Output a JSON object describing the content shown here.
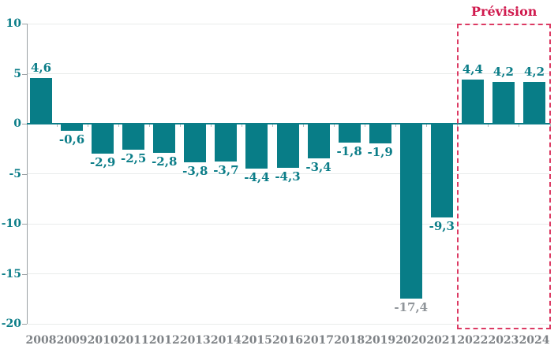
{
  "colors": {
    "bar": "#087d87",
    "value_label": "#0b7d88",
    "muted_value_label": "#90959a",
    "year_label": "#7e8286",
    "ytick_label": "#0b7d88",
    "axis_line": "#9aa0a3",
    "gridline": "#e9eceb",
    "zero_line": "#0b7d88",
    "tick_mark": "#b3b7b9",
    "forecast_border": "#dc3a63",
    "forecast_text": "#d01a4e",
    "background": "#ffffff"
  },
  "chart_data": {
    "type": "bar",
    "title": "",
    "xlabel": "",
    "ylabel": "",
    "categories": [
      "2008",
      "2009",
      "2010",
      "2011",
      "2012",
      "2013",
      "2014",
      "2015",
      "2016",
      "2017",
      "2018",
      "2019",
      "2020",
      "2021",
      "2022",
      "2023",
      "2024"
    ],
    "values": [
      4.6,
      -0.6,
      -2.9,
      -2.5,
      -2.8,
      -3.8,
      -3.7,
      -4.4,
      -4.3,
      -3.4,
      -1.8,
      -1.9,
      -17.4,
      -9.3,
      4.4,
      4.2,
      4.2
    ],
    "value_labels": [
      "4,6",
      "-0,6",
      "-2,9",
      "-2,5",
      "-2,8",
      "-3,8",
      "-3,7",
      "-4,4",
      "-4,3",
      "-3,4",
      "-1,8",
      "-1,9",
      "-17,4",
      "-9,3",
      "4,4",
      "4,2",
      "4,2"
    ],
    "muted_label_categories": [
      "2020"
    ],
    "ylim": [
      -20,
      10
    ],
    "yticks": [
      10,
      5,
      0,
      -5,
      -10,
      -15,
      -20
    ],
    "ytick_labels": [
      "10",
      "5",
      "0",
      "-5",
      "-10",
      "-15",
      "-20"
    ],
    "grid": true,
    "legend": "none",
    "forecast": {
      "label": "Prévision",
      "categories": [
        "2022",
        "2023",
        "2024"
      ]
    }
  }
}
